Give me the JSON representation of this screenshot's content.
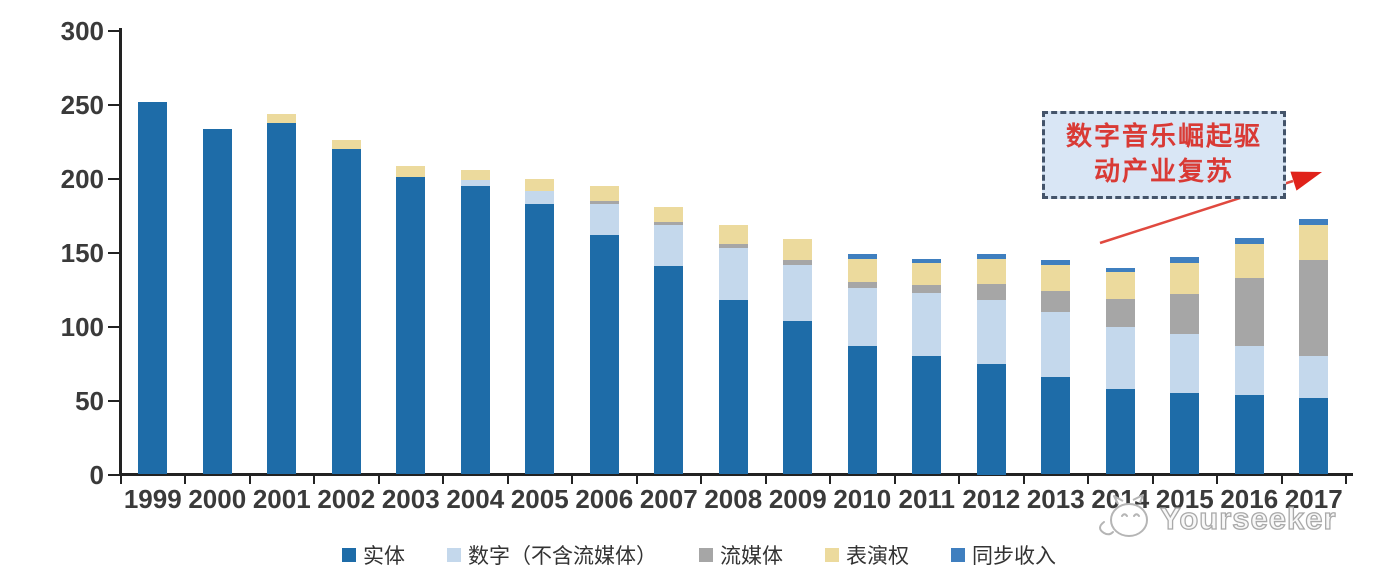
{
  "chart_data": {
    "type": "bar",
    "stacked": true,
    "categories": [
      "1999",
      "2000",
      "2001",
      "2002",
      "2003",
      "2004",
      "2005",
      "2006",
      "2007",
      "2008",
      "2009",
      "2010",
      "2011",
      "2012",
      "2013",
      "2014",
      "2015",
      "2016",
      "2017"
    ],
    "series": [
      {
        "name": "实体",
        "color": "#1e6ca8",
        "values": [
          252,
          234,
          238,
          220,
          201,
          195,
          183,
          162,
          141,
          118,
          104,
          87,
          80,
          75,
          66,
          58,
          55,
          54,
          52
        ]
      },
      {
        "name": "数字（不含流媒体）",
        "color": "#c4d8ec",
        "values": [
          0,
          0,
          0,
          0,
          0,
          4,
          9,
          21,
          28,
          35,
          38,
          39,
          43,
          43,
          44,
          42,
          40,
          33,
          28
        ]
      },
      {
        "name": "流媒体",
        "color": "#a6a6a6",
        "values": [
          0,
          0,
          0,
          0,
          0,
          0,
          0,
          2,
          2,
          3,
          3,
          4,
          5,
          11,
          14,
          19,
          27,
          46,
          65
        ]
      },
      {
        "name": "表演权",
        "color": "#ecda9d",
        "values": [
          0,
          0,
          6,
          6,
          8,
          7,
          8,
          10,
          10,
          13,
          14,
          16,
          15,
          17,
          18,
          18,
          21,
          23,
          24
        ]
      },
      {
        "name": "同步收入",
        "color": "#3f7fbf",
        "values": [
          0,
          0,
          0,
          0,
          0,
          0,
          0,
          0,
          0,
          0,
          0,
          3,
          3,
          3,
          3,
          3,
          4,
          4,
          4
        ]
      }
    ],
    "title": "",
    "xlabel": "",
    "ylabel": "",
    "ylim": [
      0,
      300
    ],
    "yticks": [
      0,
      50,
      100,
      150,
      200,
      250,
      300
    ],
    "grid": false,
    "legend_position": "bottom",
    "annotations": [
      {
        "text_line1": "数字音乐崛起驱",
        "text_line2": "动产业复苏",
        "style": "dashed-box-with-red-arrow"
      }
    ]
  },
  "annotation": {
    "line1": "数字音乐崛起驱",
    "line2": "动产业复苏"
  },
  "watermark": {
    "brand": "Yourseeker"
  }
}
